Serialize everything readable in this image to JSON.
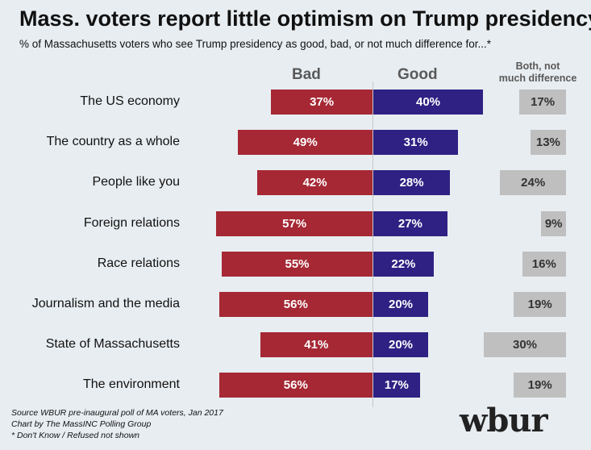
{
  "title": "Mass. voters report little optimism on Trump presidency",
  "subtitle": "% of Massachusetts voters who see Trump presidency as good, bad, or not much difference for...*",
  "chart_data": {
    "type": "bar",
    "title": "Mass. voters report little optimism on Trump presidency",
    "categories": [
      "The US economy",
      "The country as a whole",
      "People like you",
      "Foreign relations",
      "Race relations",
      "Journalism and the media",
      "State of Massachusetts",
      "The environment"
    ],
    "series": [
      {
        "name": "Bad",
        "values": [
          37,
          49,
          42,
          57,
          55,
          56,
          41,
          56
        ],
        "color": "#a52834"
      },
      {
        "name": "Good",
        "values": [
          40,
          31,
          28,
          27,
          22,
          20,
          20,
          17
        ],
        "color": "#2e2183"
      },
      {
        "name": "Both, not much difference",
        "values": [
          17,
          13,
          24,
          9,
          16,
          19,
          30,
          19
        ],
        "color": "#bfbfbf"
      }
    ],
    "unit": "%",
    "orientation": "horizontal diverging"
  },
  "headers": {
    "bad": "Bad",
    "good": "Good",
    "both_line1": "Both, not",
    "both_line2": "much difference"
  },
  "notes": [
    "Source WBUR pre-inaugural poll of MA voters, Jan 2017",
    "Chart by The MassINC Polling Group",
    "* Don't Know / Refused not shown"
  ],
  "logo": "wbur"
}
